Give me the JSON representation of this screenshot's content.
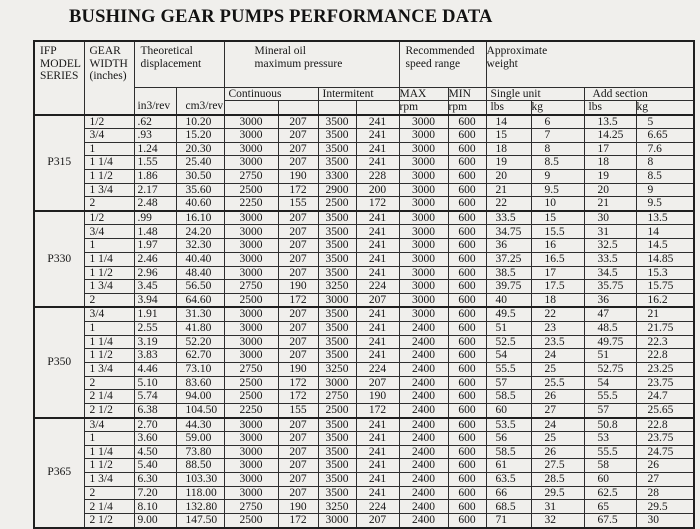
{
  "title": "BUSHING GEAR PUMPS PERFORMANCE DATA",
  "colors": {
    "background": "#f0efec",
    "line": "#2e2e2e",
    "line_heavy": "#1f1f1f",
    "text": "#161616"
  },
  "table": {
    "header": {
      "model_lines": [
        "IFP",
        "MODEL",
        "SERIES"
      ],
      "gear_width_lines": [
        "GEAR",
        "WIDTH",
        "(inches)"
      ],
      "theoretical_lines": [
        "Theoretical",
        "displacement"
      ],
      "mineral_lines": [
        "Mineral oil",
        "maximum pressure"
      ],
      "speed_lines": [
        "Recommended",
        "speed range"
      ],
      "weight_lines": [
        "Approximate",
        "weight"
      ],
      "in3_rev": "in3/rev",
      "cm3_rev": "cm3/rev",
      "continuous": "Continuous",
      "intermitent": "Intermitent",
      "max": "MAX",
      "min": "MIN",
      "rpm": "rpm",
      "single_unit": "Single unit",
      "add_section": "Add section",
      "lbs": "lbs",
      "kg": "kg"
    },
    "groups": [
      {
        "model": "P315",
        "rows": [
          [
            "1/2",
            ".62",
            "10.20",
            "3000",
            "207",
            "3500",
            "241",
            "3000",
            "600",
            "14",
            "6",
            "13.5",
            "5"
          ],
          [
            "3/4",
            ".93",
            "15.20",
            "3000",
            "207",
            "3500",
            "241",
            "3000",
            "600",
            "15",
            "7",
            "14.25",
            "6.65"
          ],
          [
            "1",
            "1.24",
            "20.30",
            "3000",
            "207",
            "3500",
            "241",
            "3000",
            "600",
            "18",
            "8",
            "17",
            "7.6"
          ],
          [
            "1 1/4",
            "1.55",
            "25.40",
            "3000",
            "207",
            "3500",
            "241",
            "3000",
            "600",
            "19",
            "8.5",
            "18",
            "8"
          ],
          [
            "1 1/2",
            "1.86",
            "30.50",
            "2750",
            "190",
            "3300",
            "228",
            "3000",
            "600",
            "20",
            "9",
            "19",
            "8.5"
          ],
          [
            "1 3/4",
            "2.17",
            "35.60",
            "2500",
            "172",
            "2900",
            "200",
            "3000",
            "600",
            "21",
            "9.5",
            "20",
            "9"
          ],
          [
            "2",
            "2.48",
            "40.60",
            "2250",
            "155",
            "2500",
            "172",
            "3000",
            "600",
            "22",
            "10",
            "21",
            "9.5"
          ]
        ]
      },
      {
        "model": "P330",
        "rows": [
          [
            "1/2",
            ".99",
            "16.10",
            "3000",
            "207",
            "3500",
            "241",
            "3000",
            "600",
            "33.5",
            "15",
            "30",
            "13.5"
          ],
          [
            "3/4",
            "1.48",
            "24.20",
            "3000",
            "207",
            "3500",
            "241",
            "3000",
            "600",
            "34.75",
            "15.5",
            "31",
            "14"
          ],
          [
            "1",
            "1.97",
            "32.30",
            "3000",
            "207",
            "3500",
            "241",
            "3000",
            "600",
            "36",
            "16",
            "32.5",
            "14.5"
          ],
          [
            "1 1/4",
            "2.46",
            "40.40",
            "3000",
            "207",
            "3500",
            "241",
            "3000",
            "600",
            "37.25",
            "16.5",
            "33.5",
            "14.85"
          ],
          [
            "1 1/2",
            "2.96",
            "48.40",
            "3000",
            "207",
            "3500",
            "241",
            "3000",
            "600",
            "38.5",
            "17",
            "34.5",
            "15.3"
          ],
          [
            "1 3/4",
            "3.45",
            "56.50",
            "2750",
            "190",
            "3250",
            "224",
            "3000",
            "600",
            "39.75",
            "17.5",
            "35.75",
            "15.75"
          ],
          [
            "2",
            "3.94",
            "64.60",
            "2500",
            "172",
            "3000",
            "207",
            "3000",
            "600",
            "40",
            "18",
            "36",
            "16.2"
          ]
        ]
      },
      {
        "model": "P350",
        "rows": [
          [
            "3/4",
            "1.91",
            "31.30",
            "3000",
            "207",
            "3500",
            "241",
            "3000",
            "600",
            "49.5",
            "22",
            "47",
            "21"
          ],
          [
            "1",
            "2.55",
            "41.80",
            "3000",
            "207",
            "3500",
            "241",
            "2400",
            "600",
            "51",
            "23",
            "48.5",
            "21.75"
          ],
          [
            "1 1/4",
            "3.19",
            "52.20",
            "3000",
            "207",
            "3500",
            "241",
            "2400",
            "600",
            "52.5",
            "23.5",
            "49.75",
            "22.3"
          ],
          [
            "1 1/2",
            "3.83",
            "62.70",
            "3000",
            "207",
            "3500",
            "241",
            "2400",
            "600",
            "54",
            "24",
            "51",
            "22.8"
          ],
          [
            "1 3/4",
            "4.46",
            "73.10",
            "2750",
            "190",
            "3250",
            "224",
            "2400",
            "600",
            "55.5",
            "25",
            "52.75",
            "23.25"
          ],
          [
            "2",
            "5.10",
            "83.60",
            "2500",
            "172",
            "3000",
            "207",
            "2400",
            "600",
            "57",
            "25.5",
            "54",
            "23.75"
          ],
          [
            "2 1/4",
            "5.74",
            "94.00",
            "2500",
            "172",
            "2750",
            "190",
            "2400",
            "600",
            "58.5",
            "26",
            "55.5",
            "24.7"
          ],
          [
            "2 1/2",
            "6.38",
            "104.50",
            "2250",
            "155",
            "2500",
            "172",
            "2400",
            "600",
            "60",
            "27",
            "57",
            "25.65"
          ]
        ]
      },
      {
        "model": "P365",
        "rows": [
          [
            "3/4",
            "2.70",
            "44.30",
            "3000",
            "207",
            "3500",
            "241",
            "2400",
            "600",
            "53.5",
            "24",
            "50.8",
            "22.8"
          ],
          [
            "1",
            "3.60",
            "59.00",
            "3000",
            "207",
            "3500",
            "241",
            "2400",
            "600",
            "56",
            "25",
            "53",
            "23.75"
          ],
          [
            "1 1/4",
            "4.50",
            "73.80",
            "3000",
            "207",
            "3500",
            "241",
            "2400",
            "600",
            "58.5",
            "26",
            "55.5",
            "24.75"
          ],
          [
            "1 1/2",
            "5.40",
            "88.50",
            "3000",
            "207",
            "3500",
            "241",
            "2400",
            "600",
            "61",
            "27.5",
            "58",
            "26"
          ],
          [
            "1 3/4",
            "6.30",
            "103.30",
            "3000",
            "207",
            "3500",
            "241",
            "2400",
            "600",
            "63.5",
            "28.5",
            "60",
            "27"
          ],
          [
            "2",
            "7.20",
            "118.00",
            "3000",
            "207",
            "3500",
            "241",
            "2400",
            "600",
            "66",
            "29.5",
            "62.5",
            "28"
          ],
          [
            "2 1/4",
            "8.10",
            "132.80",
            "2750",
            "190",
            "3250",
            "224",
            "2400",
            "600",
            "68.5",
            "31",
            "65",
            "29.5"
          ],
          [
            "2 1/2",
            "9.00",
            "147.50",
            "2500",
            "172",
            "3000",
            "207",
            "2400",
            "600",
            "71",
            "32",
            "67.5",
            "30"
          ]
        ]
      }
    ]
  }
}
